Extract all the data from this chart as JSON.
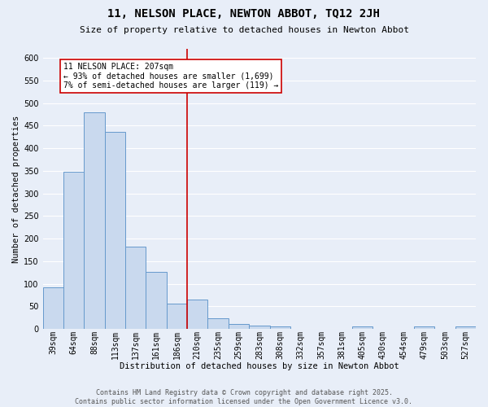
{
  "title": "11, NELSON PLACE, NEWTON ABBOT, TQ12 2JH",
  "subtitle": "Size of property relative to detached houses in Newton Abbot",
  "xlabel": "Distribution of detached houses by size in Newton Abbot",
  "ylabel": "Number of detached properties",
  "bar_color": "#c9d9ee",
  "bar_edge_color": "#6699cc",
  "background_color": "#e8eef8",
  "grid_color": "#ffffff",
  "bins": [
    "39sqm",
    "64sqm",
    "88sqm",
    "113sqm",
    "137sqm",
    "161sqm",
    "186sqm",
    "210sqm",
    "235sqm",
    "259sqm",
    "283sqm",
    "308sqm",
    "332sqm",
    "357sqm",
    "381sqm",
    "405sqm",
    "430sqm",
    "454sqm",
    "479sqm",
    "503sqm",
    "527sqm"
  ],
  "values": [
    93,
    348,
    480,
    437,
    183,
    126,
    57,
    65,
    23,
    12,
    7,
    5,
    0,
    0,
    0,
    5,
    0,
    0,
    5,
    0,
    5
  ],
  "property_line_idx": 7,
  "property_line_color": "#cc0000",
  "annotation_line1": "11 NELSON PLACE: 207sqm",
  "annotation_line2": "← 93% of detached houses are smaller (1,699)",
  "annotation_line3": "7% of semi-detached houses are larger (119) →",
  "annotation_box_color": "#ffffff",
  "annotation_box_edge": "#cc0000",
  "footer_text": "Contains HM Land Registry data © Crown copyright and database right 2025.\nContains public sector information licensed under the Open Government Licence v3.0.",
  "ylim": [
    0,
    620
  ],
  "yticks": [
    0,
    50,
    100,
    150,
    200,
    250,
    300,
    350,
    400,
    450,
    500,
    550,
    600
  ],
  "title_fontsize": 10,
  "subtitle_fontsize": 8,
  "ylabel_fontsize": 7.5,
  "xlabel_fontsize": 7.5,
  "tick_fontsize": 7,
  "annot_fontsize": 7,
  "footer_fontsize": 6
}
